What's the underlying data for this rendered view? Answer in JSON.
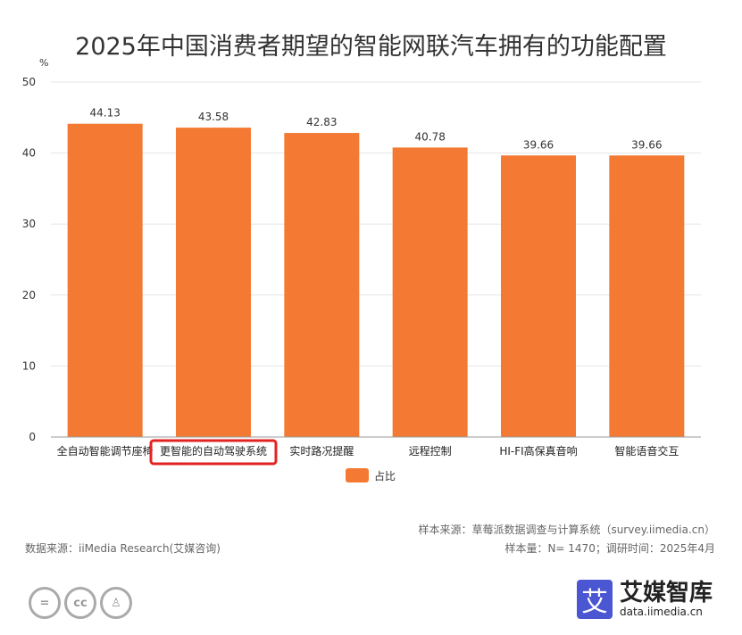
{
  "chart_data": {
    "type": "bar",
    "title": "2025年中国消费者期望的智能网联汽车拥有的功能配置",
    "ylabel": "%",
    "ylim": [
      0,
      50
    ],
    "yticks": [
      0,
      10,
      20,
      30,
      40,
      50
    ],
    "grid": true,
    "categories": [
      "全自动智能调节座椅",
      "更智能的自动驾驶系统",
      "实时路况提醒",
      "远程控制",
      "HI-FI高保真音响",
      "智能语音交互"
    ],
    "series": [
      {
        "name": "占比",
        "values": [
          44.13,
          43.58,
          42.83,
          40.78,
          39.66,
          39.66
        ]
      }
    ],
    "bar_color": "#f47a33",
    "highlighted_category": "更智能的自动驾驶系统",
    "highlight_color": "#e32222",
    "legend_position": "bottom"
  },
  "footer": {
    "sample_source": "样本来源：草莓派数据调查与计算系统（survey.iimedia.cn）",
    "sample_size": "样本量：N= 1470；调研时间：2025年4月",
    "data_source": "数据来源：iiMedia Research(艾媒咨询)"
  },
  "logo": {
    "mark": "艾",
    "name": "艾媒智库",
    "url": "data.iimedia.cn"
  },
  "license_icons": [
    "=",
    "cc",
    "person"
  ]
}
